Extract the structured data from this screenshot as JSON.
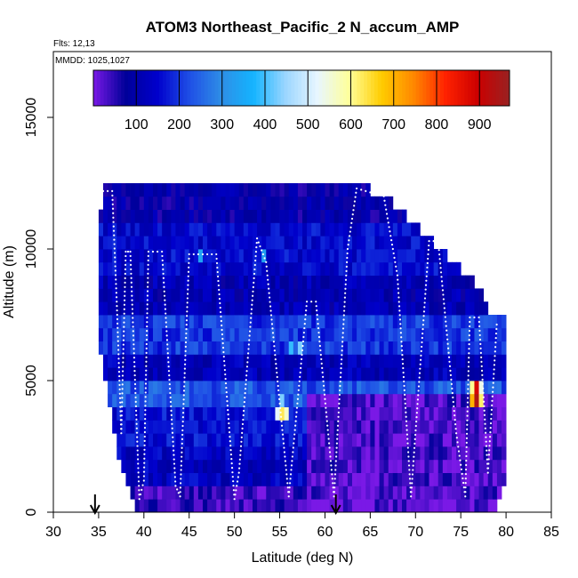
{
  "chart_data": {
    "type": "heatmap",
    "title": "ATOM3 Northeast_Pacific_2 N_accum_AMP",
    "note_flights": "Flts: 12,13",
    "note_dates": "MMDD: 1025,1027",
    "xlabel": "Latitude (deg N)",
    "ylabel": "Altitude (m)",
    "xlim": [
      30,
      85
    ],
    "ylim": [
      0,
      17500
    ],
    "xticks": [
      30,
      35,
      40,
      45,
      50,
      55,
      60,
      65,
      70,
      75,
      80,
      85
    ],
    "yticks": [
      0,
      5000,
      10000,
      15000
    ],
    "colorbar": {
      "range": [
        0,
        970
      ],
      "ticks": [
        100,
        200,
        300,
        400,
        500,
        600,
        700,
        800,
        900
      ],
      "colors": [
        "#7a19e6",
        "#000099",
        "#0000cc",
        "#1f4fe6",
        "#2e8ee6",
        "#14b4ff",
        "#9bd6ff",
        "#e8f6ff",
        "#ffff99",
        "#ffcc00",
        "#ff8800",
        "#ff2200",
        "#cc0000",
        "#992222"
      ]
    },
    "bin_size": {
      "lat": 0.5,
      "alt": 500
    },
    "column_tops": [
      {
        "lat": 35.0,
        "alt": 10500
      },
      {
        "lat": 35.5,
        "alt": 12500
      },
      {
        "lat": 40.0,
        "alt": 12500
      },
      {
        "lat": 55.0,
        "alt": 12500
      },
      {
        "lat": 62.5,
        "alt": 12500
      },
      {
        "lat": 67.0,
        "alt": 12000
      },
      {
        "lat": 69.5,
        "alt": 11000
      },
      {
        "lat": 71.0,
        "alt": 10500
      },
      {
        "lat": 74.5,
        "alt": 9500
      },
      {
        "lat": 77.0,
        "alt": 8500
      },
      {
        "lat": 78.5,
        "alt": 7500
      },
      {
        "lat": 80.0,
        "alt": 7500
      }
    ],
    "column_bottoms": [
      {
        "lat": 35.0,
        "alt": 6500
      },
      {
        "lat": 36.0,
        "alt": 4500
      },
      {
        "lat": 36.5,
        "alt": 3500
      },
      {
        "lat": 37.5,
        "alt": 1500
      },
      {
        "lat": 39.5,
        "alt": 0
      },
      {
        "lat": 79.0,
        "alt": 0
      },
      {
        "lat": 80.0,
        "alt": 1000
      }
    ],
    "background_bands": [
      {
        "alt_from": 0,
        "alt_to": 1000,
        "value": 40
      },
      {
        "alt_from": 1000,
        "alt_to": 2500,
        "value": 130
      },
      {
        "alt_from": 2500,
        "alt_to": 4000,
        "value": 160
      },
      {
        "alt_from": 4000,
        "alt_to": 5000,
        "value": 230
      },
      {
        "alt_from": 5000,
        "alt_to": 6000,
        "value": 120
      },
      {
        "alt_from": 6000,
        "alt_to": 7500,
        "value": 200
      },
      {
        "alt_from": 7500,
        "alt_to": 9000,
        "value": 110
      },
      {
        "alt_from": 9000,
        "alt_to": 11000,
        "value": 150
      },
      {
        "alt_from": 11000,
        "alt_to": 12500,
        "value": 90
      }
    ],
    "low_region": {
      "lat_from": 58.0,
      "lat_to": 80.0,
      "alt_from": 0,
      "alt_to": 4500,
      "value": 25
    },
    "hot_spots": [
      {
        "lat": 55.0,
        "alt": 3750,
        "value": 630
      },
      {
        "lat": 54.5,
        "alt": 3750,
        "value": 520
      },
      {
        "lat": 55.5,
        "alt": 3750,
        "value": 560
      },
      {
        "lat": 55.0,
        "alt": 4250,
        "value": 430
      },
      {
        "lat": 76.5,
        "alt": 4750,
        "value": 880
      },
      {
        "lat": 76.5,
        "alt": 4250,
        "value": 940
      },
      {
        "lat": 76.0,
        "alt": 4750,
        "value": 600
      },
      {
        "lat": 77.0,
        "alt": 4750,
        "value": 540
      },
      {
        "lat": 76.0,
        "alt": 4250,
        "value": 700
      },
      {
        "lat": 77.0,
        "alt": 4250,
        "value": 620
      },
      {
        "lat": 53.0,
        "alt": 9750,
        "value": 330
      },
      {
        "lat": 46.0,
        "alt": 9750,
        "value": 340
      },
      {
        "lat": 57.0,
        "alt": 6250,
        "value": 430
      },
      {
        "lat": 56.0,
        "alt": 6250,
        "value": 390
      }
    ],
    "flight_track": [
      {
        "lat": 35.5,
        "alt": 12200
      },
      {
        "lat": 36.5,
        "alt": 12200
      },
      {
        "lat": 37.0,
        "alt": 8000
      },
      {
        "lat": 37.5,
        "alt": 3000
      },
      {
        "lat": 38.0,
        "alt": 9900
      },
      {
        "lat": 38.5,
        "alt": 9900
      },
      {
        "lat": 39.5,
        "alt": 500
      },
      {
        "lat": 40.0,
        "alt": 1200
      },
      {
        "lat": 40.5,
        "alt": 9900
      },
      {
        "lat": 42.0,
        "alt": 9900
      },
      {
        "lat": 43.5,
        "alt": 1000
      },
      {
        "lat": 44.0,
        "alt": 600
      },
      {
        "lat": 45.0,
        "alt": 9800
      },
      {
        "lat": 48.0,
        "alt": 9800
      },
      {
        "lat": 50.0,
        "alt": 500
      },
      {
        "lat": 50.5,
        "alt": 1500
      },
      {
        "lat": 52.5,
        "alt": 10400
      },
      {
        "lat": 53.5,
        "alt": 9500
      },
      {
        "lat": 56.0,
        "alt": 600
      },
      {
        "lat": 58.0,
        "alt": 8000
      },
      {
        "lat": 59.0,
        "alt": 8000
      },
      {
        "lat": 61.0,
        "alt": 600
      },
      {
        "lat": 62.5,
        "alt": 10000
      },
      {
        "lat": 63.5,
        "alt": 12300
      },
      {
        "lat": 66.5,
        "alt": 12000
      },
      {
        "lat": 68.0,
        "alt": 9000
      },
      {
        "lat": 69.5,
        "alt": 600
      },
      {
        "lat": 71.5,
        "alt": 10300
      },
      {
        "lat": 72.5,
        "alt": 10300
      },
      {
        "lat": 74.5,
        "alt": 3000
      },
      {
        "lat": 75.5,
        "alt": 600
      },
      {
        "lat": 76.0,
        "alt": 7400
      },
      {
        "lat": 77.0,
        "alt": 7400
      },
      {
        "lat": 78.0,
        "alt": 1500
      },
      {
        "lat": 79.0,
        "alt": 7300
      }
    ],
    "arrows": [
      {
        "lat": 34.6
      },
      {
        "lat": 61.2
      }
    ],
    "grid": false,
    "legend": "top colorbar"
  }
}
